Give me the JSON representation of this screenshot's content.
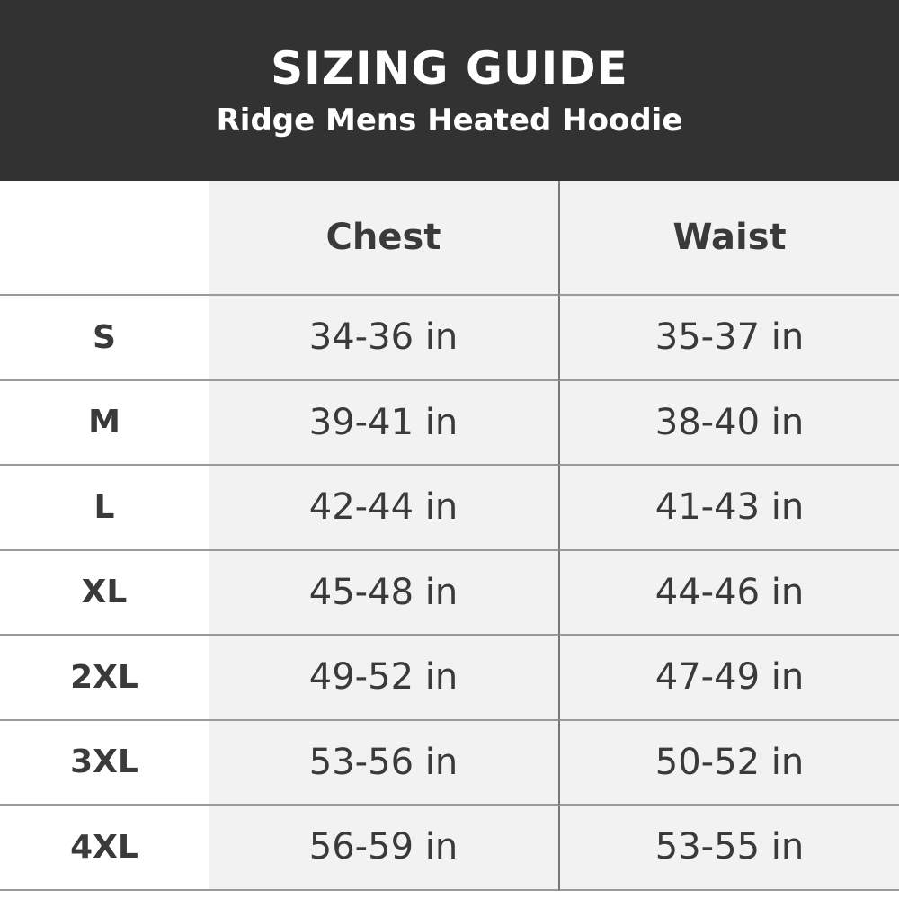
{
  "header": {
    "title": "SIZING GUIDE",
    "subtitle": "Ridge Mens Heated Hoodie"
  },
  "table": {
    "columns": [
      "",
      "Chest",
      "Waist"
    ],
    "rows": [
      {
        "size": "S",
        "chest": "34-36 in",
        "waist": "35-37 in"
      },
      {
        "size": "M",
        "chest": "39-41 in",
        "waist": "38-40 in"
      },
      {
        "size": "L",
        "chest": "42-44 in",
        "waist": "41-43 in"
      },
      {
        "size": "XL",
        "chest": "45-48 in",
        "waist": "44-46 in"
      },
      {
        "size": "2XL",
        "chest": "49-52 in",
        "waist": "47-49 in"
      },
      {
        "size": "3XL",
        "chest": "53-56 in",
        "waist": "50-52 in"
      },
      {
        "size": "4XL",
        "chest": "56-59 in",
        "waist": "53-55 in"
      }
    ]
  },
  "colors": {
    "header_bg": "#323232",
    "cell_bg": "#f2f2f2",
    "text": "#3a3a3a"
  }
}
